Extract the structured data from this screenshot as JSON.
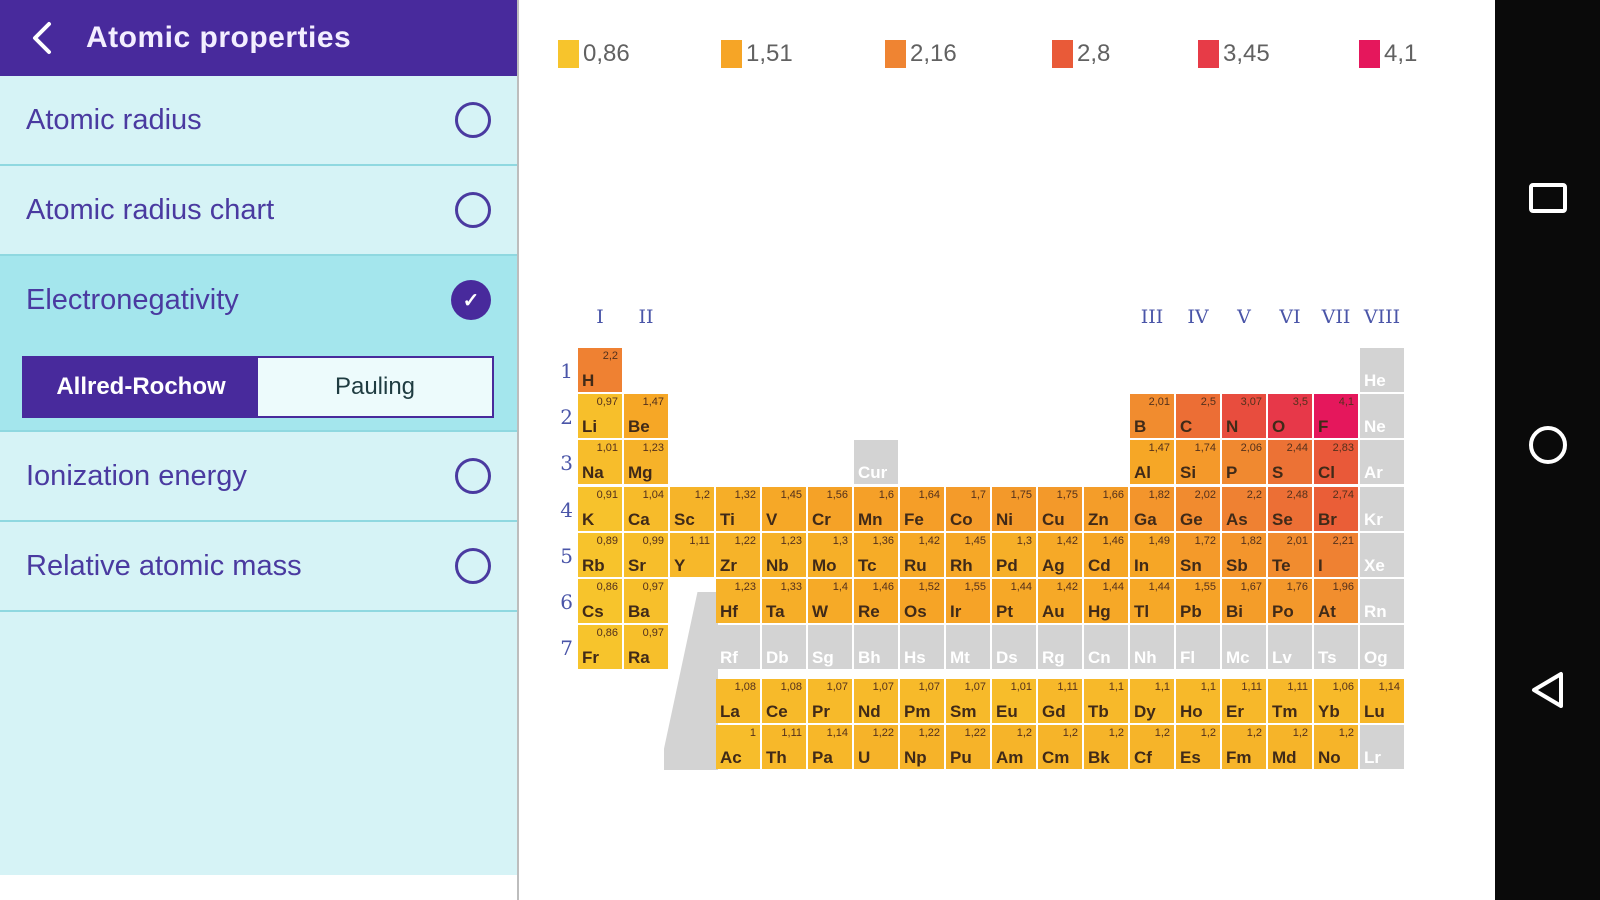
{
  "sidebar": {
    "header": {
      "title": "Atomic properties"
    },
    "items": [
      {
        "label": "Atomic radius",
        "selected": false
      },
      {
        "label": "Atomic radius chart",
        "selected": false
      },
      {
        "label": "Electronegativity",
        "selected": true
      },
      {
        "label": "Ionization energy",
        "selected": false
      },
      {
        "label": "Relative atomic mass",
        "selected": false
      }
    ],
    "scale_toggle": {
      "options": [
        {
          "label": "Allred-Rochow",
          "selected": true
        },
        {
          "label": "Pauling",
          "selected": false
        }
      ]
    },
    "check_glyph": "✓"
  },
  "legend": {
    "items": [
      {
        "value": "0,86",
        "color": "#F7C42C"
      },
      {
        "value": "1,51",
        "color": "#F6A526"
      },
      {
        "value": "2,16",
        "color": "#EF8432"
      },
      {
        "value": "2,8",
        "color": "#E95A38"
      },
      {
        "value": "3,45",
        "color": "#E73B47"
      },
      {
        "value": "4,1",
        "color": "#E5175C"
      }
    ]
  },
  "periodic_table": {
    "group_labels": [
      {
        "label": "I",
        "col": 0
      },
      {
        "label": "II",
        "col": 1
      },
      {
        "label": "III",
        "col": 12
      },
      {
        "label": "IV",
        "col": 13
      },
      {
        "label": "V",
        "col": 14
      },
      {
        "label": "VI",
        "col": 15
      },
      {
        "label": "VII",
        "col": 16
      },
      {
        "label": "VIII",
        "col": 17
      }
    ],
    "period_labels": [
      "1",
      "2",
      "3",
      "4",
      "5",
      "6",
      "7"
    ],
    "gray_color": "#D3D3D3",
    "color_scale_anchors": [
      {
        "v": 0.86,
        "color": "#F7C42C"
      },
      {
        "v": 1.51,
        "color": "#F6A526"
      },
      {
        "v": 2.16,
        "color": "#EF8432"
      },
      {
        "v": 2.8,
        "color": "#E95A38"
      },
      {
        "v": 3.45,
        "color": "#E73B47"
      },
      {
        "v": 4.1,
        "color": "#E5175C"
      }
    ],
    "rows": [
      {
        "cells": [
          {
            "symbol": "H",
            "value": "2,2",
            "col": 0
          },
          {
            "symbol": "He",
            "col": 17,
            "gray": true
          }
        ]
      },
      {
        "cells": [
          {
            "symbol": "Li",
            "value": "0,97",
            "col": 0
          },
          {
            "symbol": "Be",
            "value": "1,47",
            "col": 1
          },
          {
            "symbol": "B",
            "value": "2,01",
            "col": 12
          },
          {
            "symbol": "C",
            "value": "2,5",
            "col": 13
          },
          {
            "symbol": "N",
            "value": "3,07",
            "col": 14
          },
          {
            "symbol": "O",
            "value": "3,5",
            "col": 15
          },
          {
            "symbol": "F",
            "value": "4,1",
            "col": 16
          },
          {
            "symbol": "Ne",
            "col": 17,
            "gray": true
          }
        ]
      },
      {
        "cells": [
          {
            "symbol": "Na",
            "value": "1,01",
            "col": 0
          },
          {
            "symbol": "Mg",
            "value": "1,23",
            "col": 1
          },
          {
            "symbol": "Cur",
            "col": 6,
            "gray": true,
            "cursor": true
          },
          {
            "symbol": "Al",
            "value": "1,47",
            "col": 12
          },
          {
            "symbol": "Si",
            "value": "1,74",
            "col": 13
          },
          {
            "symbol": "P",
            "value": "2,06",
            "col": 14
          },
          {
            "symbol": "S",
            "value": "2,44",
            "col": 15
          },
          {
            "symbol": "Cl",
            "value": "2,83",
            "col": 16
          },
          {
            "symbol": "Ar",
            "col": 17,
            "gray": true
          }
        ]
      },
      {
        "cells": [
          {
            "symbol": "K",
            "value": "0,91",
            "col": 0
          },
          {
            "symbol": "Ca",
            "value": "1,04",
            "col": 1
          },
          {
            "symbol": "Sc",
            "value": "1,2",
            "col": 2
          },
          {
            "symbol": "Ti",
            "value": "1,32",
            "col": 3
          },
          {
            "symbol": "V",
            "value": "1,45",
            "col": 4
          },
          {
            "symbol": "Cr",
            "value": "1,56",
            "col": 5
          },
          {
            "symbol": "Mn",
            "value": "1,6",
            "col": 6
          },
          {
            "symbol": "Fe",
            "value": "1,64",
            "col": 7
          },
          {
            "symbol": "Co",
            "value": "1,7",
            "col": 8
          },
          {
            "symbol": "Ni",
            "value": "1,75",
            "col": 9
          },
          {
            "symbol": "Cu",
            "value": "1,75",
            "col": 10
          },
          {
            "symbol": "Zn",
            "value": "1,66",
            "col": 11
          },
          {
            "symbol": "Ga",
            "value": "1,82",
            "col": 12
          },
          {
            "symbol": "Ge",
            "value": "2,02",
            "col": 13
          },
          {
            "symbol": "As",
            "value": "2,2",
            "col": 14
          },
          {
            "symbol": "Se",
            "value": "2,48",
            "col": 15
          },
          {
            "symbol": "Br",
            "value": "2,74",
            "col": 16
          },
          {
            "symbol": "Kr",
            "col": 17,
            "gray": true
          }
        ]
      },
      {
        "cells": [
          {
            "symbol": "Rb",
            "value": "0,89",
            "col": 0
          },
          {
            "symbol": "Sr",
            "value": "0,99",
            "col": 1
          },
          {
            "symbol": "Y",
            "value": "1,11",
            "col": 2
          },
          {
            "symbol": "Zr",
            "value": "1,22",
            "col": 3
          },
          {
            "symbol": "Nb",
            "value": "1,23",
            "col": 4
          },
          {
            "symbol": "Mo",
            "value": "1,3",
            "col": 5
          },
          {
            "symbol": "Tc",
            "value": "1,36",
            "col": 6
          },
          {
            "symbol": "Ru",
            "value": "1,42",
            "col": 7
          },
          {
            "symbol": "Rh",
            "value": "1,45",
            "col": 8
          },
          {
            "symbol": "Pd",
            "value": "1,3",
            "col": 9
          },
          {
            "symbol": "Ag",
            "value": "1,42",
            "col": 10
          },
          {
            "symbol": "Cd",
            "value": "1,46",
            "col": 11
          },
          {
            "symbol": "In",
            "value": "1,49",
            "col": 12
          },
          {
            "symbol": "Sn",
            "value": "1,72",
            "col": 13
          },
          {
            "symbol": "Sb",
            "value": "1,82",
            "col": 14
          },
          {
            "symbol": "Te",
            "value": "2,01",
            "col": 15
          },
          {
            "symbol": "I",
            "value": "2,21",
            "col": 16
          },
          {
            "symbol": "Xe",
            "col": 17,
            "gray": true
          }
        ]
      },
      {
        "cells": [
          {
            "symbol": "Cs",
            "value": "0,86",
            "col": 0
          },
          {
            "symbol": "Ba",
            "value": "0,97",
            "col": 1
          },
          {
            "symbol": "Hf",
            "value": "1,23",
            "col": 3
          },
          {
            "symbol": "Ta",
            "value": "1,33",
            "col": 4
          },
          {
            "symbol": "W",
            "value": "1,4",
            "col": 5
          },
          {
            "symbol": "Re",
            "value": "1,46",
            "col": 6
          },
          {
            "symbol": "Os",
            "value": "1,52",
            "col": 7
          },
          {
            "symbol": "Ir",
            "value": "1,55",
            "col": 8
          },
          {
            "symbol": "Pt",
            "value": "1,44",
            "col": 9
          },
          {
            "symbol": "Au",
            "value": "1,42",
            "col": 10
          },
          {
            "symbol": "Hg",
            "value": "1,44",
            "col": 11
          },
          {
            "symbol": "Tl",
            "value": "1,44",
            "col": 12
          },
          {
            "symbol": "Pb",
            "value": "1,55",
            "col": 13
          },
          {
            "symbol": "Bi",
            "value": "1,67",
            "col": 14
          },
          {
            "symbol": "Po",
            "value": "1,76",
            "col": 15
          },
          {
            "symbol": "At",
            "value": "1,96",
            "col": 16
          },
          {
            "symbol": "Rn",
            "col": 17,
            "gray": true
          }
        ]
      },
      {
        "cells": [
          {
            "symbol": "Fr",
            "value": "0,86",
            "col": 0
          },
          {
            "symbol": "Ra",
            "value": "0,97",
            "col": 1
          },
          {
            "symbol": "Rf",
            "col": 3,
            "gray": true
          },
          {
            "symbol": "Db",
            "col": 4,
            "gray": true
          },
          {
            "symbol": "Sg",
            "col": 5,
            "gray": true
          },
          {
            "symbol": "Bh",
            "col": 6,
            "gray": true
          },
          {
            "symbol": "Hs",
            "col": 7,
            "gray": true
          },
          {
            "symbol": "Mt",
            "col": 8,
            "gray": true
          },
          {
            "symbol": "Ds",
            "col": 9,
            "gray": true
          },
          {
            "symbol": "Rg",
            "col": 10,
            "gray": true
          },
          {
            "symbol": "Cn",
            "col": 11,
            "gray": true
          },
          {
            "symbol": "Nh",
            "col": 12,
            "gray": true
          },
          {
            "symbol": "Fl",
            "col": 13,
            "gray": true
          },
          {
            "symbol": "Mc",
            "col": 14,
            "gray": true
          },
          {
            "symbol": "Lv",
            "col": 15,
            "gray": true
          },
          {
            "symbol": "Ts",
            "col": 16,
            "gray": true
          },
          {
            "symbol": "Og",
            "col": 17,
            "gray": true
          }
        ]
      },
      {
        "cells": [
          {
            "symbol": "La",
            "value": "1,08",
            "col": 3
          },
          {
            "symbol": "Ce",
            "value": "1,08",
            "col": 4
          },
          {
            "symbol": "Pr",
            "value": "1,07",
            "col": 5
          },
          {
            "symbol": "Nd",
            "value": "1,07",
            "col": 6
          },
          {
            "symbol": "Pm",
            "value": "1,07",
            "col": 7
          },
          {
            "symbol": "Sm",
            "value": "1,07",
            "col": 8
          },
          {
            "symbol": "Eu",
            "value": "1,01",
            "col": 9
          },
          {
            "symbol": "Gd",
            "value": "1,11",
            "col": 10
          },
          {
            "symbol": "Tb",
            "value": "1,1",
            "col": 11
          },
          {
            "symbol": "Dy",
            "value": "1,1",
            "col": 12
          },
          {
            "symbol": "Ho",
            "value": "1,1",
            "col": 13
          },
          {
            "symbol": "Er",
            "value": "1,11",
            "col": 14
          },
          {
            "symbol": "Tm",
            "value": "1,11",
            "col": 15
          },
          {
            "symbol": "Yb",
            "value": "1,06",
            "col": 16
          },
          {
            "symbol": "Lu",
            "value": "1,14",
            "col": 17
          }
        ]
      },
      {
        "cells": [
          {
            "symbol": "Ac",
            "value": "1",
            "col": 3
          },
          {
            "symbol": "Th",
            "value": "1,11",
            "col": 4
          },
          {
            "symbol": "Pa",
            "value": "1,14",
            "col": 5
          },
          {
            "symbol": "U",
            "value": "1,22",
            "col": 6
          },
          {
            "symbol": "Np",
            "value": "1,22",
            "col": 7
          },
          {
            "symbol": "Pu",
            "value": "1,22",
            "col": 8
          },
          {
            "symbol": "Am",
            "value": "1,2",
            "col": 9
          },
          {
            "symbol": "Cm",
            "value": "1,2",
            "col": 10
          },
          {
            "symbol": "Bk",
            "value": "1,2",
            "col": 11
          },
          {
            "symbol": "Cf",
            "value": "1,2",
            "col": 12
          },
          {
            "symbol": "Es",
            "value": "1,2",
            "col": 13
          },
          {
            "symbol": "Fm",
            "value": "1,2",
            "col": 14
          },
          {
            "symbol": "Md",
            "value": "1,2",
            "col": 15
          },
          {
            "symbol": "No",
            "value": "1,2",
            "col": 16
          },
          {
            "symbol": "Lr",
            "col": 17,
            "gray": true
          }
        ]
      }
    ]
  },
  "navbar": {
    "icon_color": "#FFFFFF",
    "background": "#0A0A0A",
    "buttons": [
      "recents",
      "home",
      "back"
    ]
  }
}
